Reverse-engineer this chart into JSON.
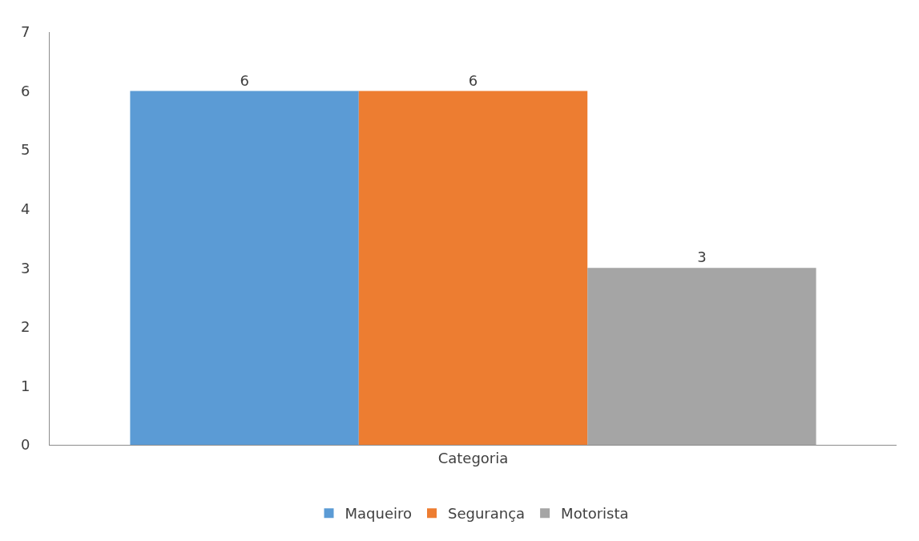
{
  "chart_data": {
    "type": "bar",
    "categories": [
      "Categoria"
    ],
    "series": [
      {
        "name": "Maqueiro",
        "color": "#5b9bd5",
        "values": [
          6
        ]
      },
      {
        "name": "Segurança",
        "color": "#ed7d31",
        "values": [
          6
        ]
      },
      {
        "name": "Motorista",
        "color": "#a5a5a5",
        "values": [
          3
        ]
      }
    ],
    "ylim": [
      0,
      7
    ],
    "yticks": [
      0,
      1,
      2,
      3,
      4,
      5,
      6,
      7
    ],
    "legend": "bottom",
    "data_labels": true
  }
}
